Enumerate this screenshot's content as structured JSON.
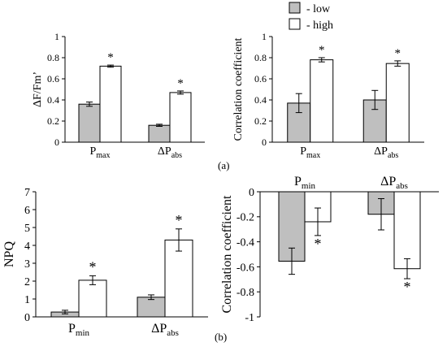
{
  "legend": {
    "items": [
      {
        "label": "- low",
        "color": "#bfbfbf"
      },
      {
        "label": "- high",
        "color": "#ffffff"
      }
    ]
  },
  "panel_labels": {
    "a": "(a)",
    "b": "(b)"
  },
  "colors": {
    "low": "#bfbfbf",
    "high": "#ffffff",
    "stroke": "#000000"
  },
  "chart_data": [
    {
      "type": "bar",
      "ylabel": "ΔF/Fm’",
      "ylim": [
        0,
        1
      ],
      "yticks": [
        "0",
        "0.2",
        "0.4",
        "0.6",
        "0.8",
        "1"
      ],
      "categories": [
        {
          "main": "P",
          "sub": "max"
        },
        {
          "main": "ΔP",
          "sub": "abs"
        }
      ],
      "series": [
        {
          "name": "low",
          "values": [
            0.36,
            0.16
          ],
          "errors": [
            0.02,
            0.01
          ]
        },
        {
          "name": "high",
          "values": [
            0.72,
            0.47
          ],
          "errors": [
            0.01,
            0.015
          ]
        }
      ],
      "annotations": [
        {
          "text": "*",
          "category": 0
        },
        {
          "text": "*",
          "category": 1
        }
      ]
    },
    {
      "type": "bar",
      "ylabel": "Correlation coefficient",
      "ylim": [
        0,
        1
      ],
      "yticks": [
        "0",
        "0.2",
        "0.4",
        "0.6",
        "0.8",
        "1"
      ],
      "categories": [
        {
          "main": "P",
          "sub": "max"
        },
        {
          "main": "ΔP",
          "sub": "abs"
        }
      ],
      "series": [
        {
          "name": "low",
          "values": [
            0.37,
            0.4
          ],
          "errors": [
            0.09,
            0.09
          ]
        },
        {
          "name": "high",
          "values": [
            0.78,
            0.745
          ],
          "errors": [
            0.02,
            0.025
          ]
        }
      ],
      "annotations": [
        {
          "text": "*",
          "category": 0
        },
        {
          "text": "*",
          "category": 1
        }
      ]
    },
    {
      "type": "bar",
      "ylabel": "NPQ",
      "ylim": [
        0,
        7
      ],
      "yticks": [
        "0",
        "1",
        "2",
        "3",
        "4",
        "5",
        "6",
        "7"
      ],
      "categories": [
        {
          "main": "P",
          "sub": "min"
        },
        {
          "main": "ΔP",
          "sub": "abs"
        }
      ],
      "series": [
        {
          "name": "low",
          "values": [
            0.27,
            1.1
          ],
          "errors": [
            0.1,
            0.13
          ]
        },
        {
          "name": "high",
          "values": [
            2.05,
            4.3
          ],
          "errors": [
            0.25,
            0.62
          ]
        }
      ],
      "annotations": [
        {
          "text": "*",
          "category": 0
        },
        {
          "text": "*",
          "category": 1
        }
      ]
    },
    {
      "type": "bar",
      "ylabel": "Correlation coefficient",
      "ylim": [
        -1,
        0
      ],
      "yticks": [
        "-1",
        "-0.8",
        "-0.6",
        "-0.4",
        "-0.2",
        "0"
      ],
      "categories": [
        {
          "main": "P",
          "sub": "min"
        },
        {
          "main": "ΔP",
          "sub": "abs"
        }
      ],
      "series": [
        {
          "name": "low",
          "values": [
            -0.555,
            -0.18
          ],
          "errors": [
            0.105,
            0.125
          ]
        },
        {
          "name": "high",
          "values": [
            -0.24,
            -0.615
          ],
          "errors": [
            0.11,
            0.08
          ]
        }
      ],
      "annotations": [
        {
          "text": "*",
          "category": 0
        },
        {
          "text": "*",
          "category": 1
        }
      ]
    }
  ]
}
